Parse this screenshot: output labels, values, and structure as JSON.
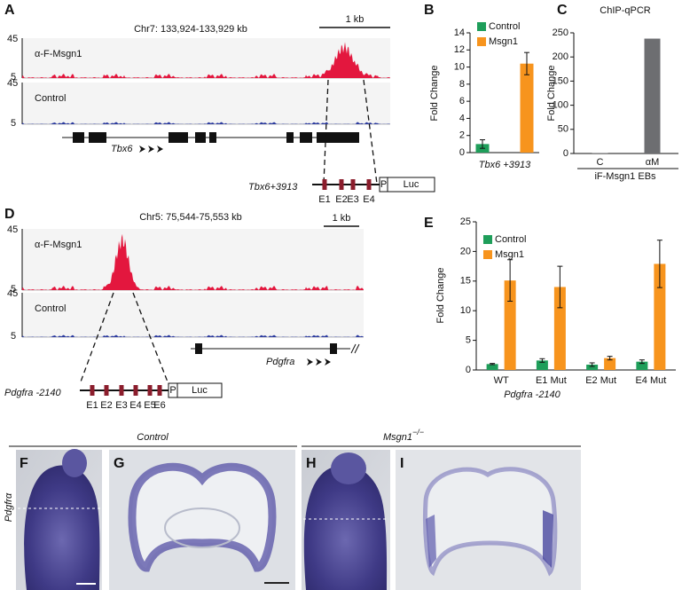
{
  "panel_labels": [
    "A",
    "B",
    "C",
    "D",
    "E",
    "F",
    "G",
    "H",
    "I"
  ],
  "genome_tracks": [
    {
      "region": "Chr7: 133,924-133,929 kb",
      "scale_bar": "1 kb",
      "tracks": [
        {
          "name": "α-F-Msgn1",
          "max": "45",
          "min": "5"
        },
        {
          "name": "Control",
          "max": "45",
          "min": "5"
        }
      ],
      "gene": "Tbx6",
      "construct": {
        "name": "Tbx6+3913",
        "elements": [
          "E1",
          "E2",
          "E3",
          "E4"
        ],
        "promoter": "P",
        "reporter": "Luc"
      }
    },
    {
      "region": "Chr5: 75,544-75,553 kb",
      "scale_bar": "1 kb",
      "tracks": [
        {
          "name": "α-F-Msgn1",
          "max": "45",
          "min": "5"
        },
        {
          "name": "Control",
          "max": "45",
          "min": "5"
        }
      ],
      "gene": "Pdgfra",
      "construct": {
        "name": "Pdgfra -2140",
        "elements": [
          "E1",
          "E2",
          "E3",
          "E4",
          "E5",
          "E6"
        ],
        "promoter": "P",
        "reporter": "Luc"
      }
    }
  ],
  "in_situ": {
    "control": "Control",
    "mutant": "Msgn1",
    "mutant_superscript": "−/−",
    "gene": "Pdgfrα"
  },
  "chart_data": [
    {
      "type": "bar",
      "y_label": "Fold Change",
      "categories": [
        "Tbx6 +3913"
      ],
      "series": [
        {
          "name": "Control",
          "color": "#1e9e5a",
          "values": [
            1.0
          ],
          "errors": [
            0.5
          ]
        },
        {
          "name": "Msgn1",
          "color": "#f7941d",
          "values": [
            10.4
          ],
          "errors": [
            1.3
          ]
        }
      ],
      "ylim": [
        0,
        14
      ],
      "yticks": [
        0,
        2,
        4,
        6,
        8,
        10,
        12,
        14
      ]
    },
    {
      "type": "bar",
      "title": "ChIP-qPCR",
      "y_label": "Fold Change",
      "categories": [
        "C",
        "αM"
      ],
      "values": [
        1,
        238
      ],
      "color": "#6d6e71",
      "x_label": "iF-Msgn1 EBs",
      "ylim": [
        0,
        250
      ],
      "yticks": [
        0,
        50,
        100,
        150,
        200,
        250
      ]
    },
    {
      "type": "bar",
      "y_label": "Fold Change",
      "categories": [
        "WT",
        "E1 Mut",
        "E2 Mut",
        "E4 Mut"
      ],
      "series": [
        {
          "name": "Control",
          "color": "#1e9e5a",
          "values": [
            1.0,
            1.6,
            0.9,
            1.4
          ],
          "errors": [
            0.1,
            0.3,
            0.3,
            0.3
          ]
        },
        {
          "name": "Msgn1",
          "color": "#f7941d",
          "values": [
            15.1,
            14.0,
            2.0,
            17.9
          ],
          "errors": [
            3.5,
            3.5,
            0.3,
            4.0
          ]
        }
      ],
      "x_label": "Pdgfra -2140",
      "ylim": [
        0,
        25
      ],
      "yticks": [
        0,
        5,
        10,
        15,
        20,
        25
      ]
    }
  ]
}
